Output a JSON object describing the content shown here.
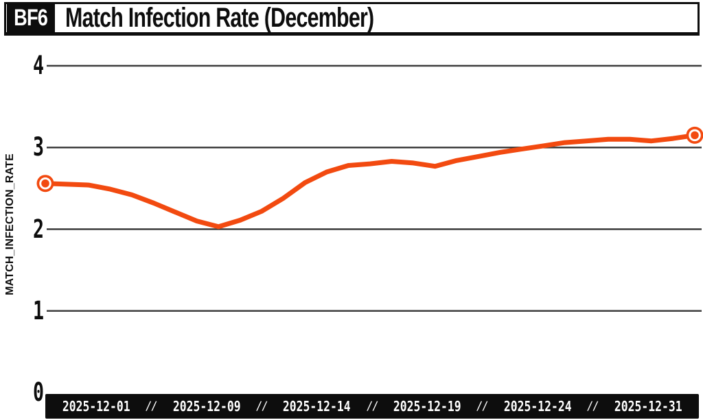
{
  "header": {
    "badge": "BF6",
    "title": "Match Infection Rate (December)"
  },
  "colors": {
    "accent": "#f24a10",
    "grid": "#3d3d3d",
    "ink": "#0d0d0d",
    "background": "#ffffff",
    "bar_text": "#ffffff"
  },
  "chart_data": {
    "type": "line",
    "title": "Match Infection Rate (December)",
    "xlabel": "",
    "ylabel": "MATCH_INFECTION_RATE",
    "ylim": [
      0,
      4
    ],
    "yticks": [
      0,
      1,
      2,
      3,
      4
    ],
    "grid": "horizontal",
    "legend": "none",
    "x_axis_bar_labels": [
      "2025-12-01",
      "2025-12-09",
      "2025-12-14",
      "2025-12-19",
      "2025-12-24",
      "2025-12-31"
    ],
    "x_axis_separator": "//",
    "x": [
      "2025-12-01",
      "2025-12-02",
      "2025-12-03",
      "2025-12-04",
      "2025-12-05",
      "2025-12-06",
      "2025-12-07",
      "2025-12-08",
      "2025-12-09",
      "2025-12-10",
      "2025-12-11",
      "2025-12-12",
      "2025-12-13",
      "2025-12-14",
      "2025-12-15",
      "2025-12-16",
      "2025-12-17",
      "2025-12-18",
      "2025-12-19",
      "2025-12-20",
      "2025-12-21",
      "2025-12-22",
      "2025-12-23",
      "2025-12-24",
      "2025-12-25",
      "2025-12-26",
      "2025-12-27",
      "2025-12-28",
      "2025-12-29",
      "2025-12-30",
      "2025-12-31"
    ],
    "series": [
      {
        "name": "match_infection_rate",
        "color": "#f24a10",
        "values": [
          2.56,
          2.55,
          2.54,
          2.49,
          2.42,
          2.32,
          2.21,
          2.1,
          2.03,
          2.11,
          2.22,
          2.38,
          2.57,
          2.7,
          2.78,
          2.8,
          2.83,
          2.81,
          2.77,
          2.84,
          2.89,
          2.94,
          2.98,
          3.02,
          3.06,
          3.08,
          3.1,
          3.1,
          3.08,
          3.11,
          3.15
        ]
      }
    ],
    "endpoint_markers": true
  }
}
